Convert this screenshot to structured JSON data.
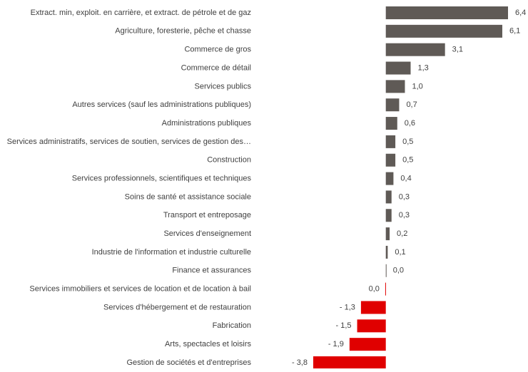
{
  "chart_data": {
    "type": "bar",
    "orientation": "horizontal",
    "categories": [
      "Extract. min, exploit. en carrière,  et extract. de pétrole et de gaz",
      "Agriculture, foresterie, pêche et chasse",
      "Commerce de gros",
      "Commerce de détail",
      "Services publics",
      "Autres services (sauf les administrations publiques)",
      "Administrations publiques",
      "Services administratifs, services de  soutien, services de gestion des…",
      "Construction",
      "Services professionnels, scientifiques et techniques",
      "Soins de santé et assistance sociale",
      "Transport et entreposage",
      "Services d'enseignement",
      "Industrie de l'information et  industrie culturelle",
      "Finance et assurances",
      "Services immobiliers et services de location et de location à bail",
      "Services d'hébergement et de restauration",
      "Fabrication",
      "Arts, spectacles et loisirs",
      "Gestion de sociétés et d'entreprises"
    ],
    "values": [
      6.4,
      6.1,
      3.1,
      1.3,
      1.0,
      0.7,
      0.6,
      0.5,
      0.5,
      0.4,
      0.3,
      0.3,
      0.2,
      0.1,
      0.0,
      -0.03,
      -1.3,
      -1.5,
      -1.9,
      -3.8
    ],
    "value_labels": [
      "6,4",
      "6,1",
      "3,1",
      "1,3",
      "1,0",
      "0,7",
      "0,6",
      "0,5",
      "0,5",
      "0,4",
      "0,3",
      "0,3",
      "0,2",
      "0,1",
      "0,0",
      "0,0",
      "- 1,3",
      "- 1,5",
      "- 1,9",
      "- 3,8"
    ],
    "color": "#5f5a56",
    "negative_color": "#e00000"
  }
}
